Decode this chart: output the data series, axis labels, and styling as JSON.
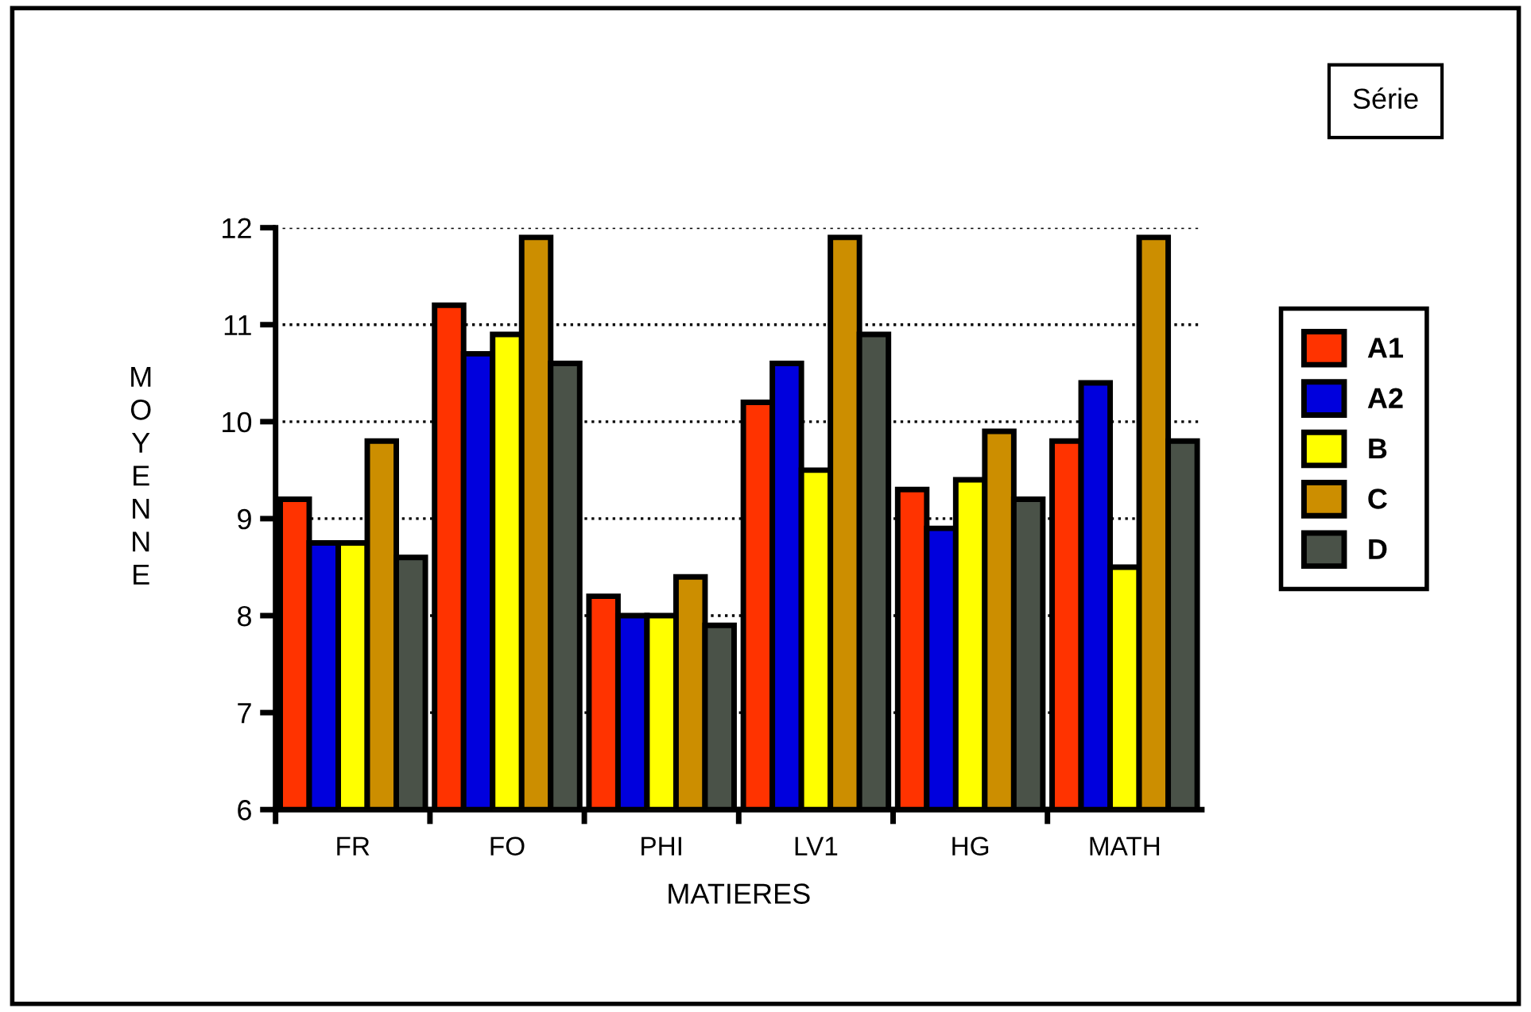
{
  "chart_data": {
    "type": "bar",
    "xlabel": "MATIERES",
    "ylabel": "MOYENNE",
    "legend_title": "Série",
    "categories": [
      "FR",
      "FO",
      "PHI",
      "LV1",
      "HG",
      "MATH"
    ],
    "series": [
      {
        "name": "A1",
        "color": "#ff3300",
        "values": [
          9.2,
          11.2,
          8.2,
          10.2,
          9.3,
          9.8
        ]
      },
      {
        "name": "A2",
        "color": "#0000dd",
        "values": [
          8.75,
          10.7,
          8.0,
          10.6,
          8.9,
          10.4
        ]
      },
      {
        "name": "B",
        "color": "#ffff00",
        "values": [
          8.75,
          10.9,
          8.0,
          9.5,
          9.4,
          8.5
        ]
      },
      {
        "name": "C",
        "color": "#cc8e00",
        "values": [
          9.8,
          11.9,
          8.4,
          11.9,
          9.9,
          11.9
        ]
      },
      {
        "name": "D",
        "color": "#4a5248",
        "values": [
          8.6,
          10.6,
          7.9,
          10.9,
          9.2,
          9.8
        ]
      }
    ],
    "ylim": [
      6,
      12
    ],
    "yticks": [
      6,
      7,
      8,
      9,
      10,
      11,
      12
    ],
    "grid": "y",
    "legend": "right"
  }
}
